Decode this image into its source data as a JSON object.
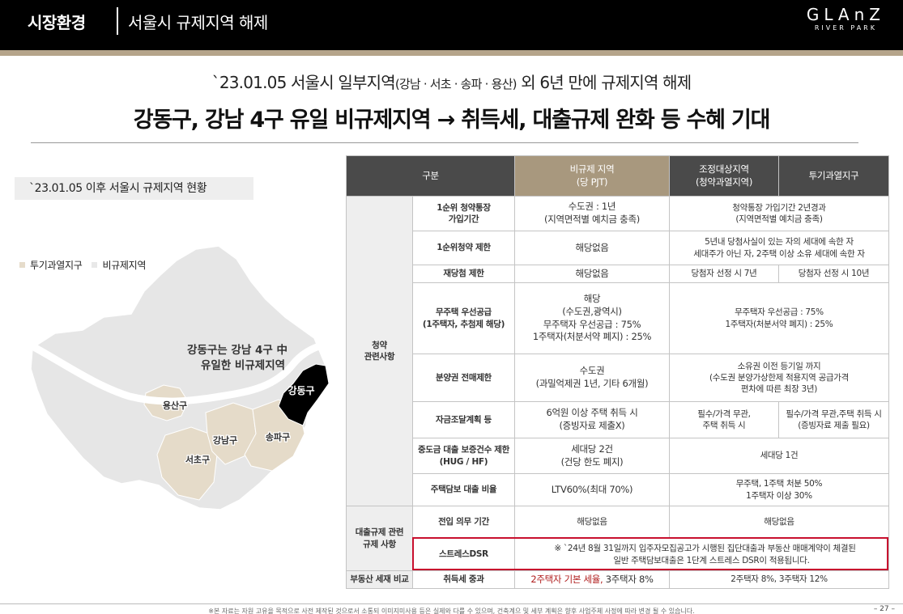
{
  "header": {
    "section": "시장환경",
    "subtitle": "서울시 규제지역 해제",
    "logo_main": "GLAnZ",
    "logo_sub": "RIVER PARK"
  },
  "headline": {
    "line1_prefix": "`23.01.05 서울시 일부지역",
    "line1_small": "(강남 · 서초 · 송파 · 용산)",
    "line1_suffix": " 외 6년 만에 규제지역 해제",
    "line2": "강동구, 강남 4구 유일 비규제지역 → 취득세, 대출규제 완화 등 수혜 기대"
  },
  "left": {
    "status_title": "`23.01.05 이후 서울시 규제지역 현황",
    "legend": [
      {
        "label": "투기과열지구",
        "color": "#e6dccb"
      },
      {
        "label": "비규제지역",
        "color": "#e8e8e8"
      }
    ],
    "map": {
      "callout_line1": "강동구는 강남 4구 中",
      "callout_line2": "유일한 비규제지역",
      "districts": {
        "gangdong": "강동구",
        "yongsan": "용산구",
        "gangnam": "강남구",
        "songpa": "송파구",
        "seocho": "서초구"
      },
      "colors": {
        "base": "#e6e6e6",
        "speculation": "#e5dbc9",
        "non_regulated": "#000000",
        "river": "#ffffff"
      }
    }
  },
  "table": {
    "headers": {
      "category": "구분",
      "non_reg_1": "비규제 지역",
      "non_reg_2": "(당 PJT)",
      "adjust_1": "조정대상지역",
      "adjust_2": "(청약과열지역)",
      "speculation": "투기과열지구"
    },
    "group_subscription_1": "청약",
    "group_subscription_2": "관련사항",
    "group_loan_1": "대출규제 관련",
    "group_loan_2": "규제 사항",
    "group_tax": "부동산 세재 비교",
    "rows": {
      "r1": {
        "item_1": "1순위 청약통장",
        "item_2": "가입기간",
        "nonreg_1": "수도권 : 1년",
        "nonreg_2": "(지역면적별 예치금 충족)",
        "reg_1": "청약통장 가입기간 2년경과",
        "reg_2": "(지역면적별 예치금 충족)"
      },
      "r2": {
        "item": "1순위청약 제한",
        "nonreg": "해당없음",
        "reg_1": "5년내 당첨사실이 있는 자의 세대에 속한 자",
        "reg_2": "세대주가 아닌 자, 2주택 이상 소유 세대에 속한 자"
      },
      "r3": {
        "item": "재당첨 제한",
        "nonreg": "해당없음",
        "adjust": "당첨자 선정 시 7년",
        "spec": "당첨자 선정 시 10년"
      },
      "r4": {
        "item_1": "무주택 우선공급",
        "item_2": "(1주택자, 추첨제 해당)",
        "nonreg_1": "해당",
        "nonreg_2": "(수도권,광역시)",
        "nonreg_3": "무주택자 우선공급 : 75%",
        "nonreg_4": "1주택자(처분서약 폐지) : 25%",
        "reg_1": "무주택자 우선공급 : 75%",
        "reg_2": "1주택자(처분서약 폐지) : 25%"
      },
      "r5": {
        "item": "분양권 전매제한",
        "nonreg_1": "수도권",
        "nonreg_2": "(과밀억제권 1년, 기타 6개월)",
        "reg_1": "소유권 이전 등기일 까지",
        "reg_2": "(수도권 분양가상한제 적용지역 공급가격",
        "reg_3": "편차에 따른 최장 3년)"
      },
      "r6": {
        "item": "자금조달계획 등",
        "nonreg_1": "6억원 이상 주택 취득 시",
        "nonreg_2": "(증빙자료 제출X)",
        "adjust_1": "필수/가격 무관,",
        "adjust_2": "주택 취득 시",
        "spec_1": "필수/가격 무관,주택 취득 시",
        "spec_2": "(증빙자료 제출 필요)"
      },
      "r7": {
        "item_1": "중도금 대출 보증건수 제한",
        "item_2": "(HUG / HF)",
        "nonreg_1": "세대당 2건",
        "nonreg_2": "(건당 한도 폐지)",
        "reg": "세대당 1건"
      },
      "r8": {
        "item": "주택담보 대출 비율",
        "nonreg": "LTV60%(최대 70%)",
        "reg_1": "무주택, 1주택 처분 50%",
        "reg_2": "1주택자 이상 30%"
      },
      "r9": {
        "item": "전입 의무 기간",
        "nonreg": "해당없음",
        "reg": "해당없음"
      },
      "r10": {
        "item": "스트레스DSR",
        "note_1": "※ `24년 8월 31일까지 입주자모집공고가 시행된 집단대출과 부동산 매매계약이 체결된",
        "note_2": "일반 주택담보대출은 1단계 스트레스 DSR이 적용됩니다."
      },
      "r11": {
        "item": "취득세 중과",
        "nonreg_a": "2주택자 기본 세율,",
        "nonreg_b": " 3주택자 8%",
        "reg": "2주택자 8%, 3주택자 12%"
      }
    }
  },
  "footer": {
    "note": "※본 자료는 자원 고유을 목적으로 사전 제작된 것으로서 소통되 이미지미사용 등은 실제와 다를 수 있으며, 건축계으 및 세부 계획은 향후 사업주체 사정에 따라 변경 될 수 있습니다.",
    "page": "– 27 –"
  }
}
